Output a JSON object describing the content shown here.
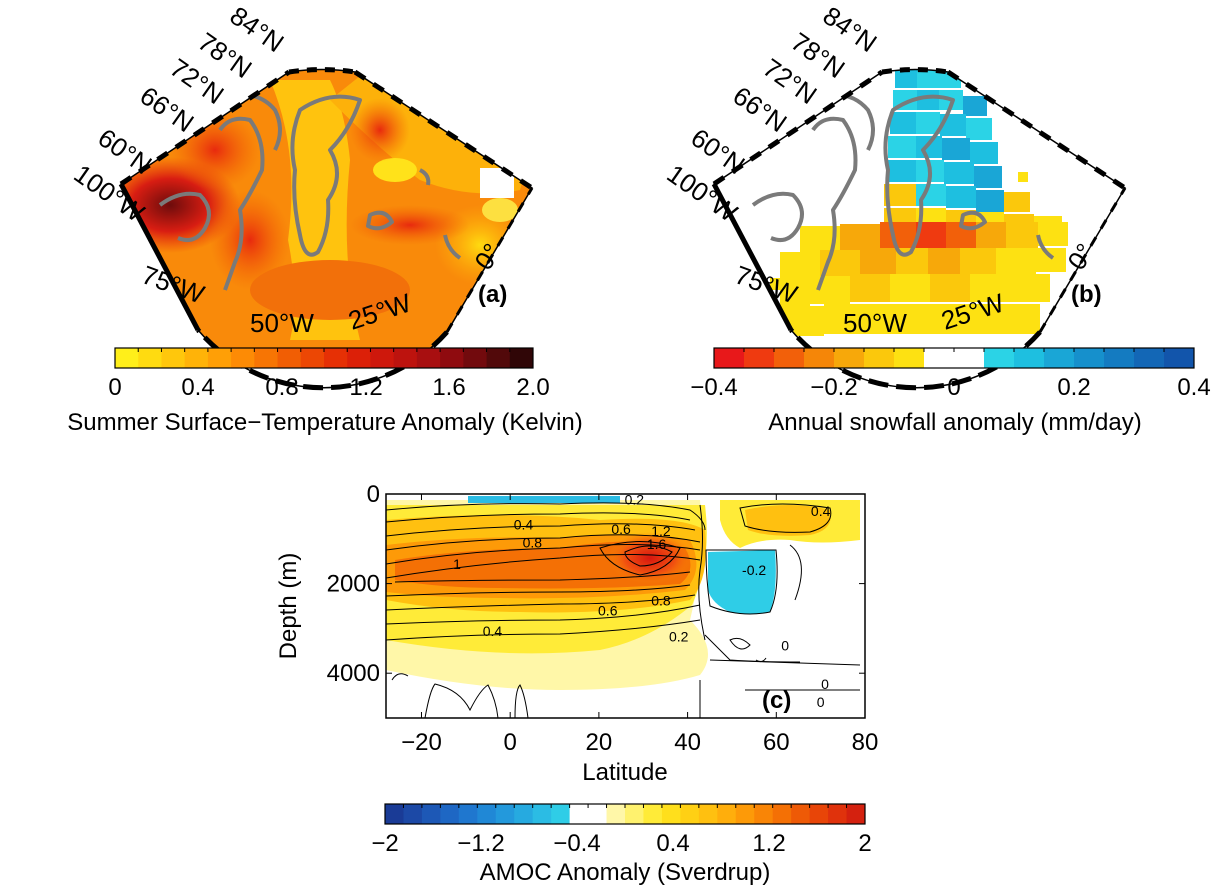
{
  "panels": {
    "a": {
      "label": "(a)",
      "lat_labels": [
        "60°N",
        "66°N",
        "72°N",
        "78°N",
        "84°N"
      ],
      "lon_labels": [
        "100°W",
        "75°W",
        "50°W",
        "25°W",
        "0°"
      ]
    },
    "b": {
      "label": "(b)",
      "lat_labels": [
        "60°N",
        "66°N",
        "72°N",
        "78°N",
        "84°N"
      ],
      "lon_labels": [
        "100°W",
        "75°W",
        "50°W",
        "25°W",
        "0°"
      ]
    },
    "c": {
      "label": "(c)"
    }
  },
  "colorbars": {
    "a": {
      "title": "Summer Surface−Temperature Anomaly (Kelvin)",
      "ticks": [
        "0",
        "0.4",
        "0.8",
        "1.2",
        "1.6",
        "2.0"
      ],
      "colors": [
        "#ffef1a",
        "#ffdb10",
        "#ffc70c",
        "#ffb308",
        "#ff9f06",
        "#fd8b05",
        "#f77504",
        "#f15e04",
        "#ec4704",
        "#e63005",
        "#dc2008",
        "#ce180c",
        "#bd130e",
        "#a80f10",
        "#8f0b0f",
        "#720a0d",
        "#52090a",
        "#300607"
      ]
    },
    "b": {
      "title": "Annual snowfall anomaly (mm/day)",
      "ticks": [
        "−0.4",
        "−0.2",
        "0",
        "0.2",
        "0.4"
      ],
      "colors": [
        "#e8181a",
        "#ef3a10",
        "#f2600a",
        "#f58608",
        "#f7a80a",
        "#fbc80c",
        "#fde112",
        "#ffffff",
        "#ffffff",
        "#2bd3e6",
        "#1ebfe0",
        "#1aa6d6",
        "#1690cc",
        "#147bc1",
        "#1367b6",
        "#1255ab"
      ]
    },
    "c": {
      "title": "AMOC Anomaly (Sverdrup)",
      "ticks": [
        "−2",
        "−1.2",
        "−0.4",
        "0.4",
        "1.2",
        "2"
      ],
      "colors": [
        "#1a3b96",
        "#1c49a6",
        "#1d58b6",
        "#1e67c4",
        "#1f77cf",
        "#2088d6",
        "#2399dc",
        "#26aae0",
        "#2bbce4",
        "#2fcde7",
        "#ffffff",
        "#ffffff",
        "#fff7a8",
        "#fff26e",
        "#ffeb38",
        "#ffdf1c",
        "#ffd014",
        "#ffc010",
        "#ffae0c",
        "#fd9a08",
        "#f98506",
        "#f47005",
        "#ee5a06",
        "#e84508",
        "#e0320c",
        "#d4210f"
      ]
    }
  },
  "chart_data": [
    {
      "panel": "a",
      "type": "heatmap",
      "title": "",
      "colorbar_label": "Summer Surface−Temperature Anomaly (Kelvin)",
      "colorbar_range": [
        0,
        2.0
      ],
      "lat_ticks": [
        "60°N",
        "66°N",
        "72°N",
        "78°N",
        "84°N"
      ],
      "lon_ticks": [
        "100°W",
        "75°W",
        "50°W",
        "25°W",
        "0°"
      ]
    },
    {
      "panel": "b",
      "type": "heatmap",
      "title": "",
      "colorbar_label": "Annual snowfall anomaly (mm/day)",
      "colorbar_range": [
        -0.4,
        0.4
      ],
      "lat_ticks": [
        "60°N",
        "66°N",
        "72°N",
        "78°N",
        "84°N"
      ],
      "lon_ticks": [
        "100°W",
        "75°W",
        "50°W",
        "25°W",
        "0°"
      ]
    },
    {
      "panel": "c",
      "type": "heatmap",
      "title": "",
      "xlabel": "Latitude",
      "ylabel": "Depth (m)",
      "xlim": [
        -28,
        80
      ],
      "ylim": [
        5000,
        0
      ],
      "xticks": [
        -20,
        0,
        20,
        40,
        60,
        80
      ],
      "yticks": [
        0,
        2000,
        4000
      ],
      "xticklabels": [
        "−20",
        "0",
        "20",
        "40",
        "60",
        "80"
      ],
      "yticklabels": [
        "0",
        "2000",
        "4000"
      ],
      "colorbar_label": "AMOC Anomaly (Sverdrup)",
      "colorbar_range": [
        -2,
        2
      ],
      "contour_labels": [
        {
          "text": "0.2",
          "x": 28,
          "y": 120
        },
        {
          "text": "0.4",
          "x": 3,
          "y": 680
        },
        {
          "text": "0.6",
          "x": 25,
          "y": 780
        },
        {
          "text": "0.8",
          "x": 5,
          "y": 1080
        },
        {
          "text": "1.2",
          "x": 34,
          "y": 830
        },
        {
          "text": "1.6",
          "x": 33,
          "y": 1120
        },
        {
          "text": "1",
          "x": -12,
          "y": 1560
        },
        {
          "text": "0.6",
          "x": 22,
          "y": 2600
        },
        {
          "text": "0.8",
          "x": 34,
          "y": 2380
        },
        {
          "text": "0.4",
          "x": -4,
          "y": 3060
        },
        {
          "text": "0.2",
          "x": 38,
          "y": 3180
        },
        {
          "text": "0.4",
          "x": 70,
          "y": 380
        },
        {
          "text": "-0.2",
          "x": 55,
          "y": 1700
        },
        {
          "text": "0",
          "x": 62,
          "y": 3380
        },
        {
          "text": "0",
          "x": 71,
          "y": 4240
        },
        {
          "text": "0",
          "x": 70,
          "y": 4640
        }
      ]
    }
  ]
}
